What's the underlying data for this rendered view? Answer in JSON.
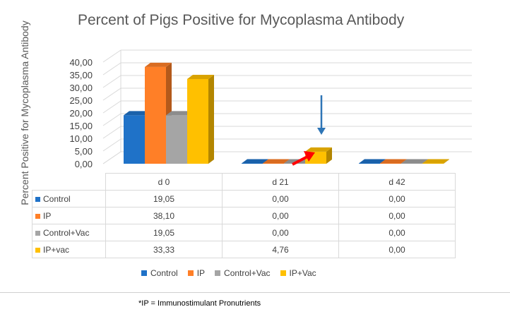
{
  "chart_data": {
    "type": "bar",
    "title": "Percent of Pigs Positive for Mycoplasma Antibody",
    "ylabel": "Percent Positive for Mycoplasma Antibody",
    "xlabel": "",
    "categories": [
      "d 0",
      "d 21",
      "d 42"
    ],
    "series": [
      {
        "name": "Control",
        "values": [
          19.05,
          0.0,
          0.0
        ],
        "color": "#1f72c8"
      },
      {
        "name": "IP",
        "values": [
          38.1,
          0.0,
          0.0
        ],
        "color": "#ff7f27"
      },
      {
        "name": "Control+Vac",
        "values": [
          19.05,
          0.0,
          0.0
        ],
        "color": "#a5a5a5"
      },
      {
        "name": "IP+Vac",
        "values": [
          33.33,
          4.76,
          0.0
        ],
        "color": "#ffc000"
      }
    ],
    "ylim": [
      0,
      40
    ],
    "yticks": [
      "40,00",
      "35,00",
      "30,00",
      "25,00",
      "20,00",
      "15,00",
      "10,00",
      "5,00",
      "0,00"
    ],
    "table": {
      "row_labels": [
        "Control",
        "IP",
        "Control+Vac",
        "IP+vac"
      ],
      "rows": [
        [
          "19,05",
          "0,00",
          "0,00"
        ],
        [
          "38,10",
          "0,00",
          "0,00"
        ],
        [
          "19,05",
          "0,00",
          "0,00"
        ],
        [
          "33,33",
          "4,76",
          "0,00"
        ]
      ]
    },
    "legend": [
      "Control",
      "IP",
      "Control+Vac",
      "IP+Vac"
    ],
    "legend_position": "bottom",
    "grid": true
  },
  "footnote": "*IP = Immunostimulant Pronutrients"
}
